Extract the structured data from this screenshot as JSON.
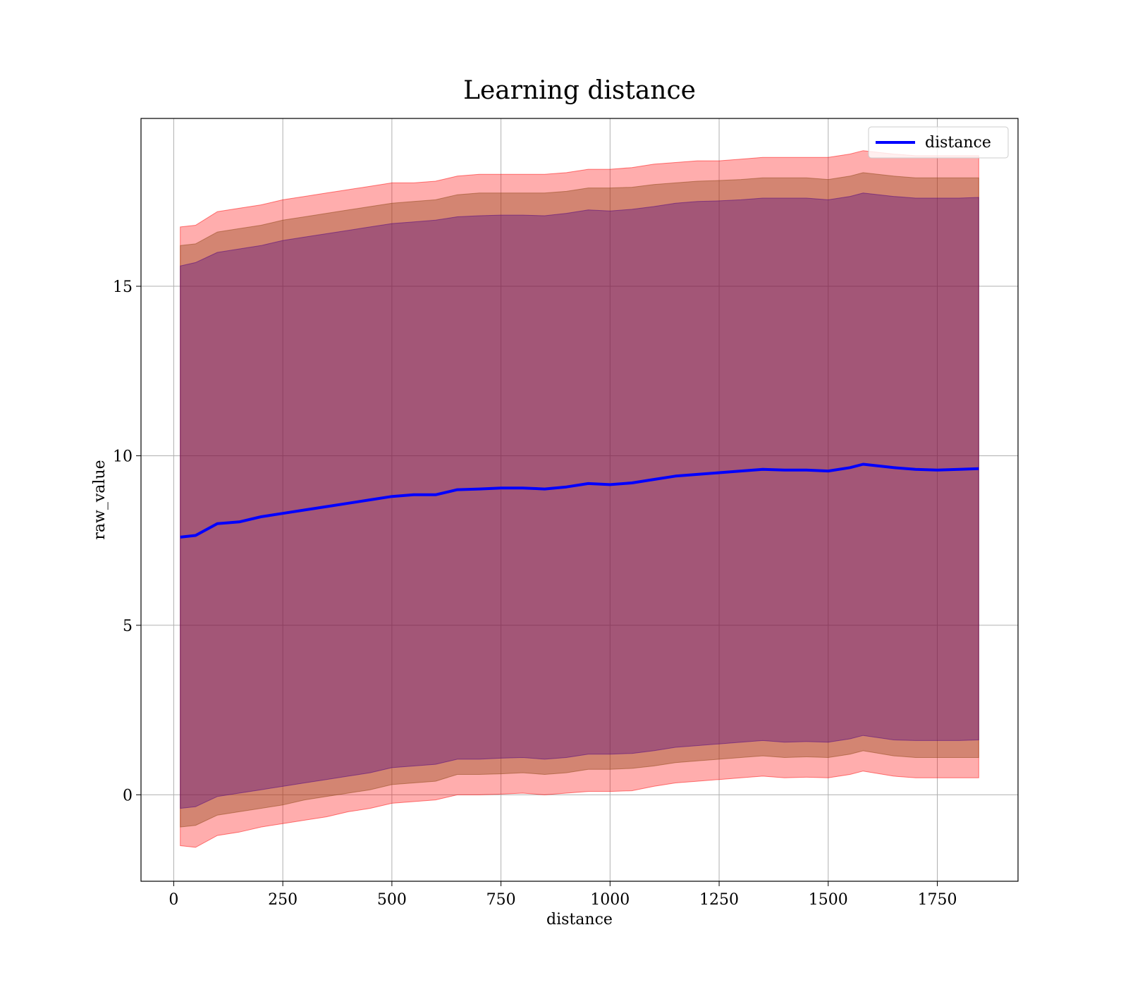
{
  "chart_data": {
    "type": "line",
    "title": "Learning distance",
    "xlabel": "distance",
    "ylabel": "raw_value",
    "xlim": [
      -75,
      1935
    ],
    "ylim": [
      -2.55,
      19.95
    ],
    "xticks": [
      0,
      250,
      500,
      750,
      1000,
      1250,
      1500,
      1750
    ],
    "yticks": [
      0,
      5,
      10,
      15
    ],
    "grid": true,
    "legend": {
      "placement": "top-right",
      "entries": [
        "distance"
      ]
    },
    "x": [
      15,
      50,
      100,
      150,
      200,
      250,
      300,
      350,
      400,
      450,
      500,
      550,
      600,
      650,
      700,
      750,
      800,
      850,
      900,
      950,
      1000,
      1050,
      1100,
      1150,
      1200,
      1250,
      1300,
      1350,
      1400,
      1450,
      1500,
      1550,
      1580,
      1650,
      1700,
      1750,
      1800,
      1845
    ],
    "series": [
      {
        "name": "distance",
        "color": "#0000ff",
        "values": [
          7.6,
          7.65,
          8.0,
          8.05,
          8.2,
          8.3,
          8.4,
          8.5,
          8.6,
          8.7,
          8.8,
          8.85,
          8.85,
          9.0,
          9.02,
          9.05,
          9.05,
          9.02,
          9.08,
          9.18,
          9.15,
          9.2,
          9.3,
          9.4,
          9.45,
          9.5,
          9.55,
          9.6,
          9.58,
          9.58,
          9.55,
          9.65,
          9.75,
          9.65,
          9.6,
          9.58,
          9.6,
          9.62
        ]
      }
    ],
    "bands": [
      {
        "color": "#ff0000",
        "opacity": 0.32,
        "lower": [
          -1.5,
          -1.55,
          -1.2,
          -1.1,
          -0.95,
          -0.85,
          -0.75,
          -0.65,
          -0.5,
          -0.4,
          -0.25,
          -0.2,
          -0.15,
          0.0,
          0.0,
          0.02,
          0.05,
          0.0,
          0.05,
          0.1,
          0.1,
          0.12,
          0.25,
          0.35,
          0.4,
          0.45,
          0.5,
          0.55,
          0.5,
          0.52,
          0.5,
          0.6,
          0.7,
          0.55,
          0.5,
          0.5,
          0.5,
          0.5
        ],
        "upper": [
          16.75,
          16.8,
          17.2,
          17.3,
          17.4,
          17.55,
          17.65,
          17.75,
          17.85,
          17.95,
          18.05,
          18.05,
          18.1,
          18.25,
          18.3,
          18.3,
          18.3,
          18.3,
          18.35,
          18.45,
          18.45,
          18.5,
          18.6,
          18.65,
          18.7,
          18.7,
          18.75,
          18.8,
          18.8,
          18.8,
          18.8,
          18.9,
          19.0,
          18.9,
          18.85,
          18.85,
          18.85,
          18.85
        ]
      },
      {
        "color": "#8b4513",
        "opacity": 0.38,
        "lower": [
          -0.95,
          -0.9,
          -0.6,
          -0.5,
          -0.4,
          -0.3,
          -0.15,
          -0.05,
          0.05,
          0.15,
          0.3,
          0.35,
          0.4,
          0.6,
          0.6,
          0.62,
          0.65,
          0.6,
          0.65,
          0.75,
          0.75,
          0.78,
          0.85,
          0.95,
          1.0,
          1.05,
          1.1,
          1.15,
          1.1,
          1.12,
          1.1,
          1.2,
          1.3,
          1.15,
          1.1,
          1.1,
          1.1,
          1.1
        ],
        "upper": [
          16.2,
          16.25,
          16.6,
          16.7,
          16.8,
          16.95,
          17.05,
          17.15,
          17.25,
          17.35,
          17.45,
          17.5,
          17.55,
          17.7,
          17.75,
          17.75,
          17.75,
          17.75,
          17.8,
          17.9,
          17.9,
          17.92,
          18.0,
          18.05,
          18.1,
          18.12,
          18.15,
          18.2,
          18.2,
          18.2,
          18.15,
          18.25,
          18.35,
          18.25,
          18.2,
          18.2,
          18.2,
          18.2
        ]
      },
      {
        "color": "#4b0082",
        "opacity": 0.35,
        "lower": [
          -0.4,
          -0.35,
          -0.05,
          0.05,
          0.15,
          0.25,
          0.35,
          0.45,
          0.55,
          0.65,
          0.8,
          0.85,
          0.9,
          1.05,
          1.05,
          1.08,
          1.1,
          1.05,
          1.1,
          1.2,
          1.2,
          1.22,
          1.3,
          1.4,
          1.45,
          1.5,
          1.55,
          1.6,
          1.55,
          1.57,
          1.55,
          1.65,
          1.75,
          1.62,
          1.6,
          1.6,
          1.6,
          1.62
        ],
        "upper": [
          15.6,
          15.7,
          16.0,
          16.1,
          16.2,
          16.35,
          16.45,
          16.55,
          16.65,
          16.75,
          16.85,
          16.9,
          16.95,
          17.05,
          17.08,
          17.1,
          17.1,
          17.08,
          17.15,
          17.25,
          17.22,
          17.27,
          17.35,
          17.45,
          17.5,
          17.52,
          17.55,
          17.6,
          17.6,
          17.6,
          17.55,
          17.65,
          17.75,
          17.65,
          17.6,
          17.6,
          17.6,
          17.62
        ]
      }
    ]
  }
}
